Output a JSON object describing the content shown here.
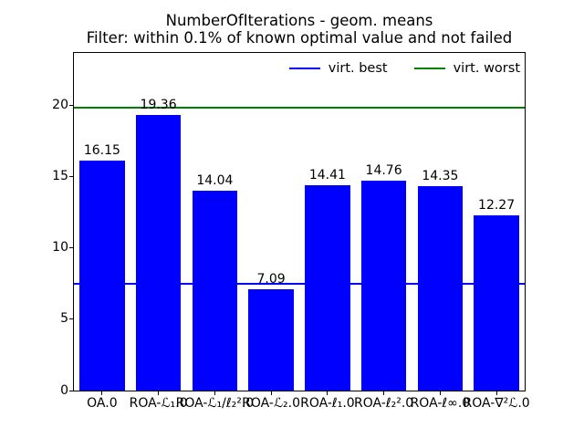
{
  "chart_data": {
    "type": "bar",
    "title": "NumberOfIterations - geom. means",
    "subtitle": "Filter: within 0.1% of known optimal value and not failed",
    "categories": [
      "OA.0",
      "ROA-ℒ₁.0",
      "ROA-ℒ₁/ℓ₂².0",
      "ROA-ℒ₂.0",
      "ROA-ℓ₁.0",
      "ROA-ℓ₂².0",
      "ROA-ℓ∞.0",
      "ROA-∇²ℒ.0"
    ],
    "values": [
      16.15,
      19.36,
      14.04,
      7.09,
      14.41,
      14.76,
      14.35,
      12.27
    ],
    "bar_color": "#0000ff",
    "reference_lines": [
      {
        "label": "virt. best",
        "value": 7.5,
        "color": "#0000ff"
      },
      {
        "label": "virt. worst",
        "value": 19.85,
        "color": "#008000"
      }
    ],
    "xlabel": "",
    "ylabel": "",
    "ylim": [
      0,
      23.7
    ],
    "y_ticks": [
      0,
      5,
      10,
      15,
      20
    ],
    "grid": false,
    "legend_position": "upper right, horizontal (2 columns)"
  }
}
